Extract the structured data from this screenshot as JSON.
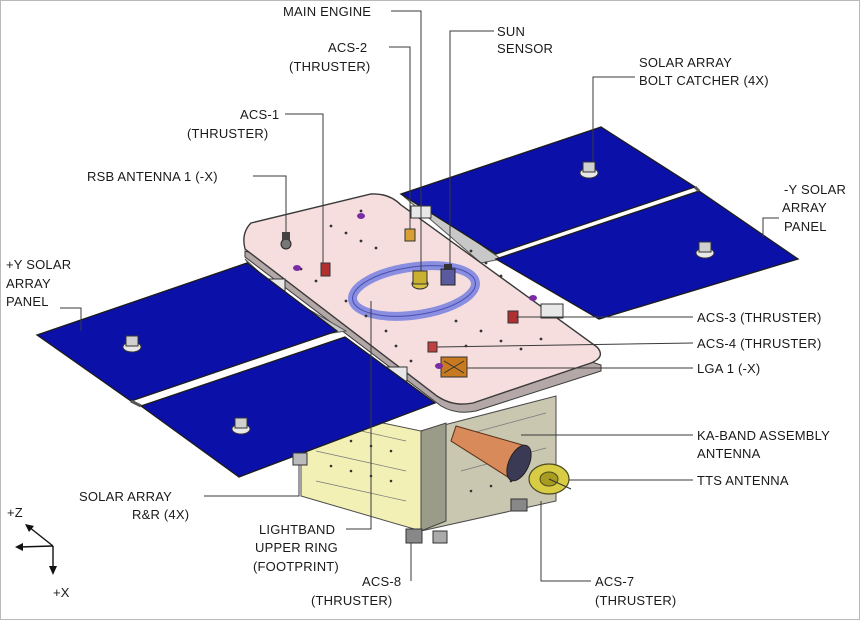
{
  "labels": {
    "main_engine": "MAIN ENGINE",
    "sun_sensor_1": "SUN",
    "sun_sensor_2": "SENSOR",
    "acs2_1": "ACS-2",
    "acs2_2": "(THRUSTER)",
    "acs1_1": "ACS-1",
    "acs1_2": "(THRUSTER)",
    "rsb_antenna": "RSB ANTENNA 1 (-X)",
    "bolt_catcher_1": "SOLAR ARRAY",
    "bolt_catcher_2": "BOLT CATCHER (4X)",
    "neg_y_panel_1": "-Y SOLAR",
    "neg_y_panel_2": "ARRAY",
    "neg_y_panel_3": "PANEL",
    "pos_y_panel_1": "+Y SOLAR",
    "pos_y_panel_2": "ARRAY",
    "pos_y_panel_3": "PANEL",
    "acs3": "ACS-3 (THRUSTER)",
    "acs4": "ACS-4 (THRUSTER)",
    "lga": "LGA 1 (-X)",
    "ka_band_1": "KA-BAND ASSEMBLY",
    "ka_band_2": "ANTENNA",
    "tts_antenna": "TTS ANTENNA",
    "solar_rr_1": "SOLAR ARRAY",
    "solar_rr_2": "R&R (4X)",
    "lightband_1": "LIGHTBAND",
    "lightband_2": "UPPER RING",
    "lightband_3": "(FOOTPRINT)",
    "acs8_1": "ACS-8",
    "acs8_2": "(THRUSTER)",
    "acs7_1": "ACS-7",
    "acs7_2": "(THRUSTER)",
    "axis_z": "+Z",
    "axis_x": "+X"
  },
  "colors": {
    "solar_panel": "#0b10a8",
    "deck": "#f6dede",
    "bus": "#f2f0b4",
    "ka_band_horn": "#d98a5a",
    "lightband_ring": "#8a8ee0"
  }
}
